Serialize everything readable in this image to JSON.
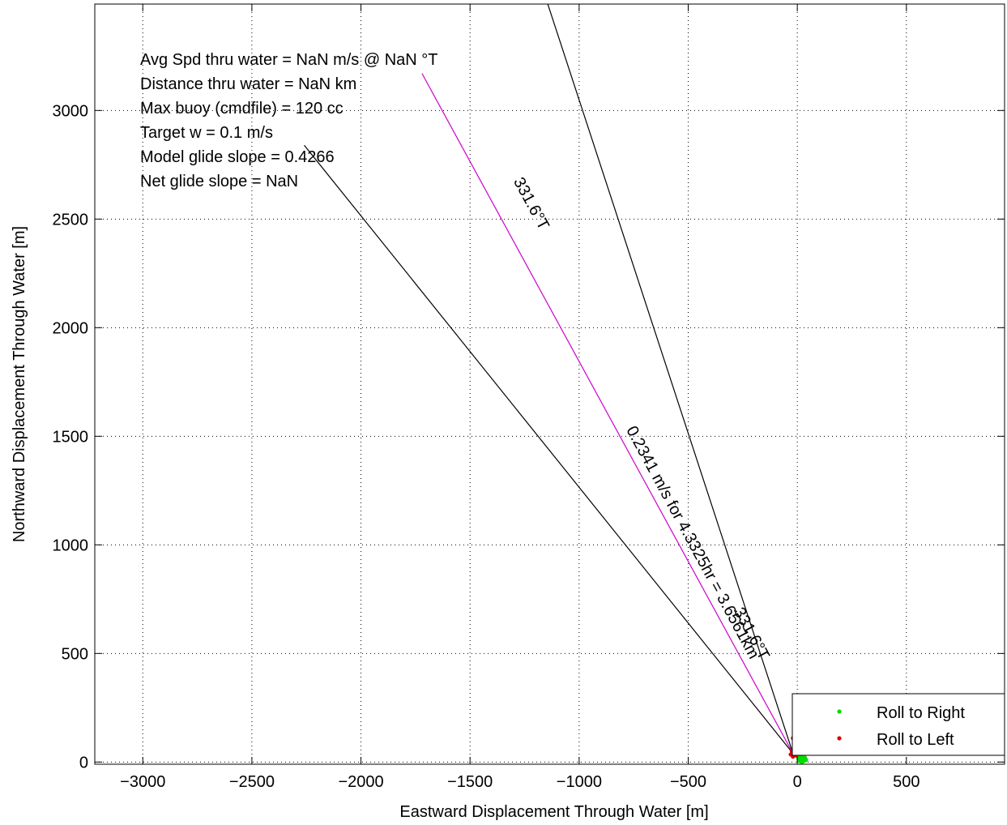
{
  "chart_data": {
    "type": "scatter",
    "title": "",
    "xlabel": "Eastward Displacement Through Water [m]",
    "ylabel": "Northward Displacement Through Water [m]",
    "xlim": [
      -3220,
      950
    ],
    "ylim": [
      -10,
      3490
    ],
    "xticks": [
      -3000,
      -2500,
      -2000,
      -1500,
      -1000,
      -500,
      0,
      500
    ],
    "xtick_labels": [
      "−3000",
      "−2500",
      "−2000",
      "−1500",
      "−1000",
      "−500",
      "0",
      "500"
    ],
    "yticks": [
      0,
      500,
      1000,
      1500,
      2000,
      2500,
      3000
    ],
    "ytick_labels": [
      "0",
      "500",
      "1000",
      "1500",
      "2000",
      "2500",
      "3000"
    ],
    "grid": true,
    "annotations_text": [
      "Avg Spd thru water =   NaN m/s @   NaN   °T",
      "Distance thru water =   NaN km",
      "Max buoy (cmdfile) = 120 cc",
      "Target w = 0.1 m/s",
      "Model glide slope = 0.4266",
      "Net glide slope =    NaN"
    ],
    "lines": [
      {
        "color": "#000000",
        "x": [
          -20,
          -2260
        ],
        "y": [
          40,
          2840
        ]
      },
      {
        "color": "#000000",
        "x": [
          -20,
          -1160
        ],
        "y": [
          40,
          3540
        ]
      },
      {
        "color": "#cc00cc",
        "x": [
          -20,
          -1720
        ],
        "y": [
          40,
          3170
        ]
      }
    ],
    "line_labels": [
      {
        "text": "331.6°T",
        "x": -1240,
        "y": 2560,
        "angle": 61.6
      },
      {
        "text": "0.2341 m/s for 4.3325hr = 3.6561km",
        "x": -500,
        "y": 1000,
        "angle": 61.6
      },
      {
        "text": "331.6°T",
        "x": -230,
        "y": 580,
        "angle": 61.6
      }
    ],
    "series": [
      {
        "name": "Roll to Right",
        "color": "#00dd00",
        "x": [
          30,
          25,
          15,
          5,
          0,
          5,
          15,
          25,
          30,
          20,
          10,
          5,
          10,
          20,
          30,
          40,
          35,
          25,
          15
        ],
        "y": [
          80,
          95,
          100,
          95,
          80,
          65,
          55,
          50,
          40,
          30,
          25,
          15,
          5,
          0,
          5,
          10,
          20,
          15,
          10
        ]
      },
      {
        "name": "Roll to Left",
        "color": "#dd0000",
        "x": [
          -10,
          -20,
          -25,
          -15,
          -5,
          -20,
          -30
        ],
        "y": [
          125,
          110,
          50,
          40,
          30,
          25,
          35
        ]
      }
    ],
    "legend": {
      "position": "bottom-right",
      "entries": [
        "Roll to Right",
        "Roll to Left"
      ]
    }
  }
}
